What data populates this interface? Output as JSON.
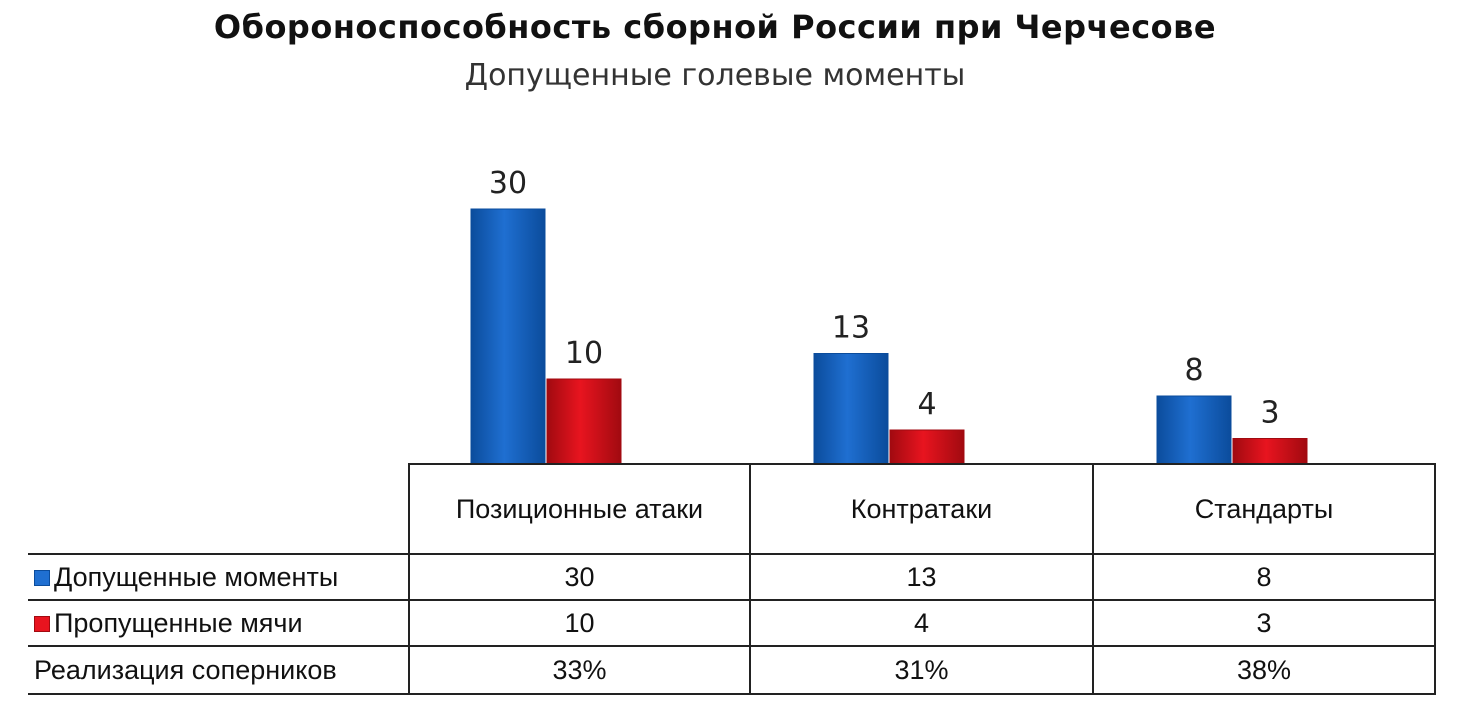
{
  "title": "Обороноспособность сборной России при Черчесове",
  "subtitle": "Допущенные голевые моменты",
  "chart_data": {
    "type": "bar",
    "categories": [
      "Позиционные атаки",
      "Контратаки",
      "Стандарты"
    ],
    "series": [
      {
        "name": "Допущенные моменты",
        "values": [
          30,
          13,
          8
        ],
        "color": "#1f6fd1"
      },
      {
        "name": "Пропущенные мячи",
        "values": [
          10,
          4,
          3
        ],
        "color": "#e8141f"
      }
    ],
    "ylim": [
      0,
      30
    ],
    "grid": false,
    "legend": "data table",
    "table": {
      "rows": [
        {
          "label": "Допущенные моменты",
          "key": "blue",
          "cells": [
            "30",
            "13",
            "8"
          ]
        },
        {
          "label": "Пропущенные мячи",
          "key": "red",
          "cells": [
            "10",
            "4",
            "3"
          ]
        },
        {
          "label": "Реализация соперников",
          "key": "none",
          "cells": [
            "33%",
            "31%",
            "38%"
          ]
        }
      ]
    }
  }
}
